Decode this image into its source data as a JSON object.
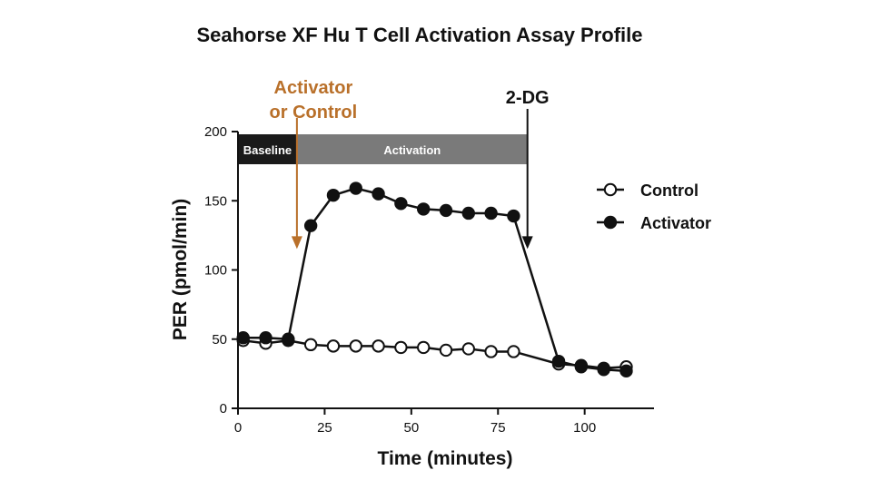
{
  "chart_data": {
    "type": "line",
    "title": "Seahorse XF Hu T Cell Activation Assay Profile",
    "xlabel": "Time (minutes)",
    "ylabel": "PER (pmol/min)",
    "xlim": [
      0,
      120
    ],
    "ylim": [
      0,
      200
    ],
    "xticks": [
      0,
      25,
      50,
      75,
      100
    ],
    "yticks": [
      0,
      50,
      100,
      150,
      200
    ],
    "grid": false,
    "legend_position": "right",
    "series": [
      {
        "name": "Control",
        "marker": "open-circle",
        "color": "#111111",
        "x": [
          1.5,
          8,
          14.5,
          21,
          27.5,
          34,
          40.5,
          47,
          53.5,
          60,
          66.5,
          73,
          79.5,
          92.5,
          99,
          105.5,
          112
        ],
        "y": [
          49,
          47,
          49,
          46,
          45,
          45,
          45,
          44,
          44,
          42,
          43,
          41,
          41,
          32,
          31,
          29,
          30
        ]
      },
      {
        "name": "Activator",
        "marker": "filled-circle",
        "color": "#111111",
        "x": [
          1.5,
          8,
          14.5,
          21,
          27.5,
          34,
          40.5,
          47,
          53.5,
          60,
          66.5,
          73,
          79.5,
          92.5,
          99,
          105.5,
          112
        ],
        "y": [
          51,
          51,
          50,
          132,
          154,
          159,
          155,
          148,
          144,
          143,
          141,
          141,
          139,
          34,
          30,
          28,
          27
        ]
      }
    ],
    "phases": [
      {
        "label": "Baseline",
        "start": 0,
        "end": 17,
        "color": "#1a1a1a"
      },
      {
        "label": "Activation",
        "start": 17,
        "end": 83.5,
        "color": "#7a7a7a"
      }
    ],
    "annotations": [
      {
        "line1": "Activator",
        "line2": "or Control",
        "x": 17,
        "y": 123,
        "color": "#b9702a"
      },
      {
        "text": "2-DG",
        "x": 83.5,
        "y": 123,
        "color": "#111111"
      }
    ],
    "legend": [
      "Control",
      "Activator"
    ]
  }
}
